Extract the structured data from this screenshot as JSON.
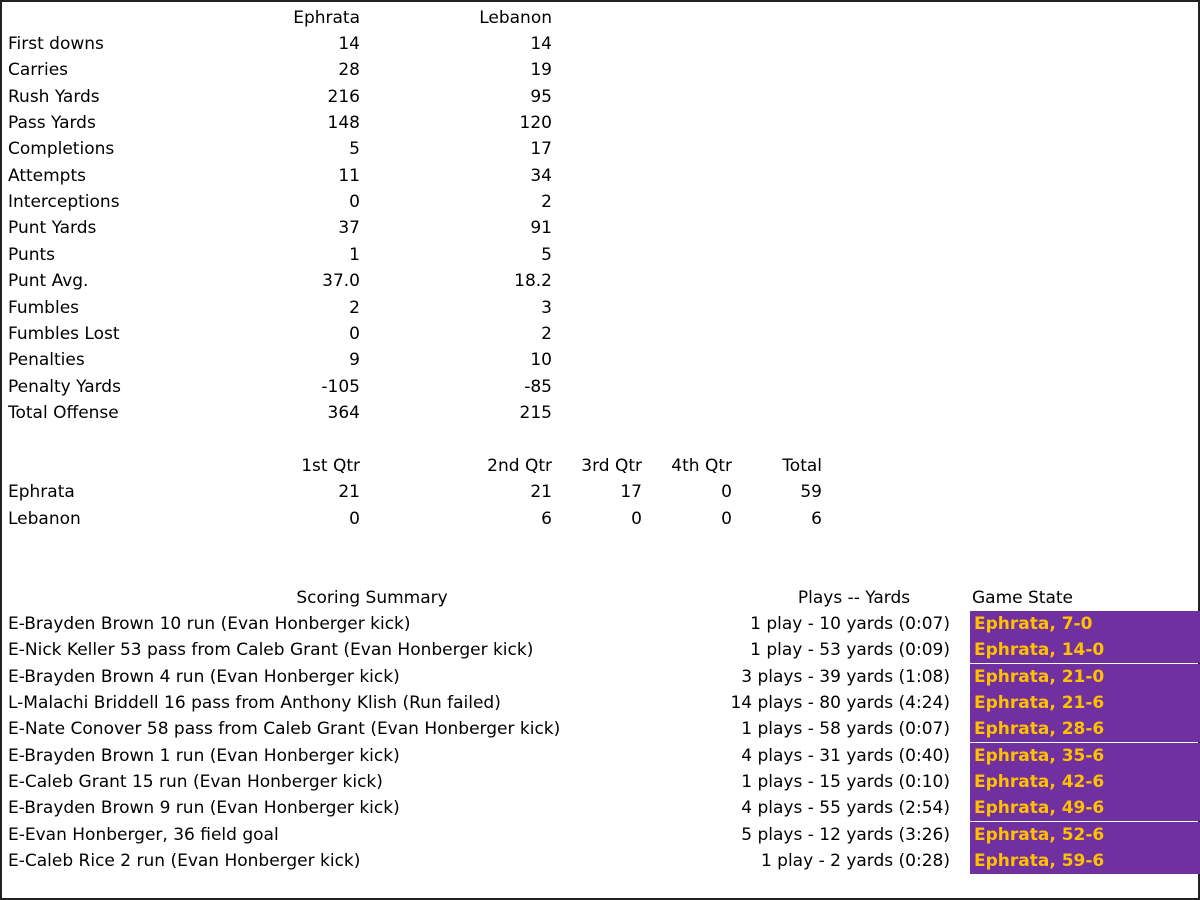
{
  "stats": {
    "headers": {
      "team1": "Ephrata",
      "team2": "Lebanon"
    },
    "rows": [
      {
        "label": "First downs",
        "e": "14",
        "l": "14"
      },
      {
        "label": "Carries",
        "e": "28",
        "l": "19"
      },
      {
        "label": "Rush Yards",
        "e": "216",
        "l": "95"
      },
      {
        "label": "Pass Yards",
        "e": "148",
        "l": "120"
      },
      {
        "label": "Completions",
        "e": "5",
        "l": "17"
      },
      {
        "label": "Attempts",
        "e": "11",
        "l": "34"
      },
      {
        "label": "Interceptions",
        "e": "0",
        "l": "2"
      },
      {
        "label": "Punt Yards",
        "e": "37",
        "l": "91"
      },
      {
        "label": "Punts",
        "e": "1",
        "l": "5"
      },
      {
        "label": "Punt Avg.",
        "e": "37.0",
        "l": "18.2"
      },
      {
        "label": "Fumbles",
        "e": "2",
        "l": "3"
      },
      {
        "label": "Fumbles Lost",
        "e": "0",
        "l": "2"
      },
      {
        "label": "Penalties",
        "e": "9",
        "l": "10"
      },
      {
        "label": "Penalty Yards",
        "e": "-105",
        "l": "-85"
      },
      {
        "label": "Total Offense",
        "e": "364",
        "l": "215"
      }
    ]
  },
  "quarters": {
    "headers": {
      "q1": "1st Qtr",
      "q2": "2nd Qtr",
      "q3": "3rd Qtr",
      "q4": "4th Qtr",
      "total": "Total"
    },
    "rows": [
      {
        "team": "Ephrata",
        "q1": "21",
        "q2": "21",
        "q3": "17",
        "q4": "0",
        "total": "59"
      },
      {
        "team": "Lebanon",
        "q1": "0",
        "q2": "6",
        "q3": "0",
        "q4": "0",
        "total": "6"
      }
    ]
  },
  "scoring": {
    "headers": {
      "summary": "Scoring Summary",
      "plays": "Plays -- Yards",
      "state": "Game State"
    },
    "state_bg": "#7030a0",
    "state_fg": "#ffc000",
    "rows": [
      {
        "play": "E-Brayden Brown 10 run (Evan Honberger kick)",
        "drive": "1 play - 10 yards (0:07)",
        "state": "Ephrata, 7-0"
      },
      {
        "play": "E-Nick Keller 53 pass from Caleb Grant (Evan Honberger kick)",
        "drive": "1 play - 53 yards (0:09)",
        "state": "Ephrata, 14-0"
      },
      {
        "play": "E-Brayden Brown 4 run (Evan Honberger kick)",
        "drive": "3 plays - 39 yards (1:08)",
        "state": "Ephrata, 21-0"
      },
      {
        "play": "L-Malachi Briddell 16 pass from Anthony Klish (Run failed)",
        "drive": "14 plays - 80 yards (4:24)",
        "state": "Ephrata, 21-6"
      },
      {
        "play": "E-Nate Conover 58 pass from Caleb Grant (Evan Honberger kick)",
        "drive": "1 plays - 58 yards (0:07)",
        "state": "Ephrata, 28-6"
      },
      {
        "play": "E-Brayden Brown 1 run (Evan Honberger kick)",
        "drive": "4 plays - 31 yards (0:40)",
        "state": "Ephrata, 35-6"
      },
      {
        "play": "E-Caleb Grant 15 run (Evan Honberger kick)",
        "drive": "1 plays - 15 yards (0:10)",
        "state": "Ephrata, 42-6"
      },
      {
        "play": "E-Brayden Brown 9 run (Evan Honberger kick)",
        "drive": "4 plays - 55 yards (2:54)",
        "state": "Ephrata, 49-6"
      },
      {
        "play": "E-Evan Honberger, 36 field goal",
        "drive": "5 plays - 12 yards (3:26)",
        "state": "Ephrata, 52-6"
      },
      {
        "play": "E-Caleb Rice 2 run (Evan Honberger kick)",
        "drive": "1 play - 2 yards (0:28)",
        "state": "Ephrata, 59-6"
      }
    ]
  }
}
